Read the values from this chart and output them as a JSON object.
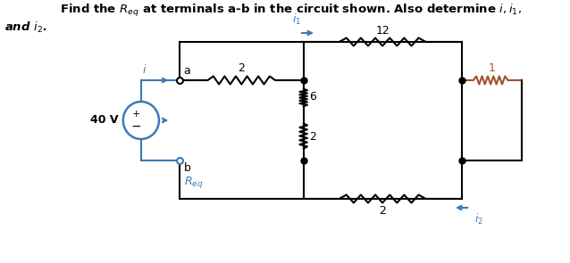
{
  "title_line1": "Find the $R_{eq}$ at terminals a-b in the circuit shown. Also determine $i, i_1,$",
  "title_line2": "and $i_2$.",
  "bg_color": "#ffffff",
  "circuit_color": "#000000",
  "blue_color": "#3d7ab5",
  "brown_color": "#a0522d",
  "voltage_label": "40 V",
  "node_a": "a",
  "node_b": "b",
  "req_label": "$R_{eq}$",
  "label_i": "$i$",
  "label_i1": "$i_1$",
  "label_i2": "$i_2$",
  "R_2top": "2",
  "R_12": "12",
  "R_6": "6",
  "R_2mid": "2",
  "R_1": "1",
  "R_2bot": "2"
}
